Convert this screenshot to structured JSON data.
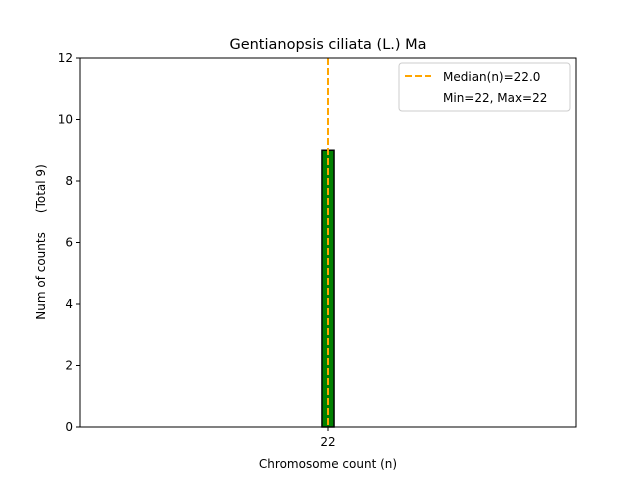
{
  "chart_data": {
    "type": "bar",
    "title": "Gentianopsis ciliata (L.) Ma",
    "xlabel": "Chromosome count (n)",
    "ylabel": "Num of counts     (Total 9)",
    "categories": [
      "22"
    ],
    "values": [
      9
    ],
    "xlim": [
      14.6,
      29.4
    ],
    "ylim": [
      0,
      12
    ],
    "yticks": [
      0,
      2,
      4,
      6,
      8,
      10,
      12
    ],
    "xticks": [
      22
    ],
    "bar_width": 0.36,
    "grid": false,
    "median_line": {
      "x": 22.0,
      "label": "Median(n)=22.0",
      "color": "#ffa500"
    },
    "legend": {
      "placement": "top-right",
      "entries": [
        "Median(n)=22.0",
        "Min=22, Max=22"
      ]
    },
    "colors": {
      "bar_fill": "#008000",
      "bar_edge": "#000000",
      "median": "#ffa500"
    }
  }
}
